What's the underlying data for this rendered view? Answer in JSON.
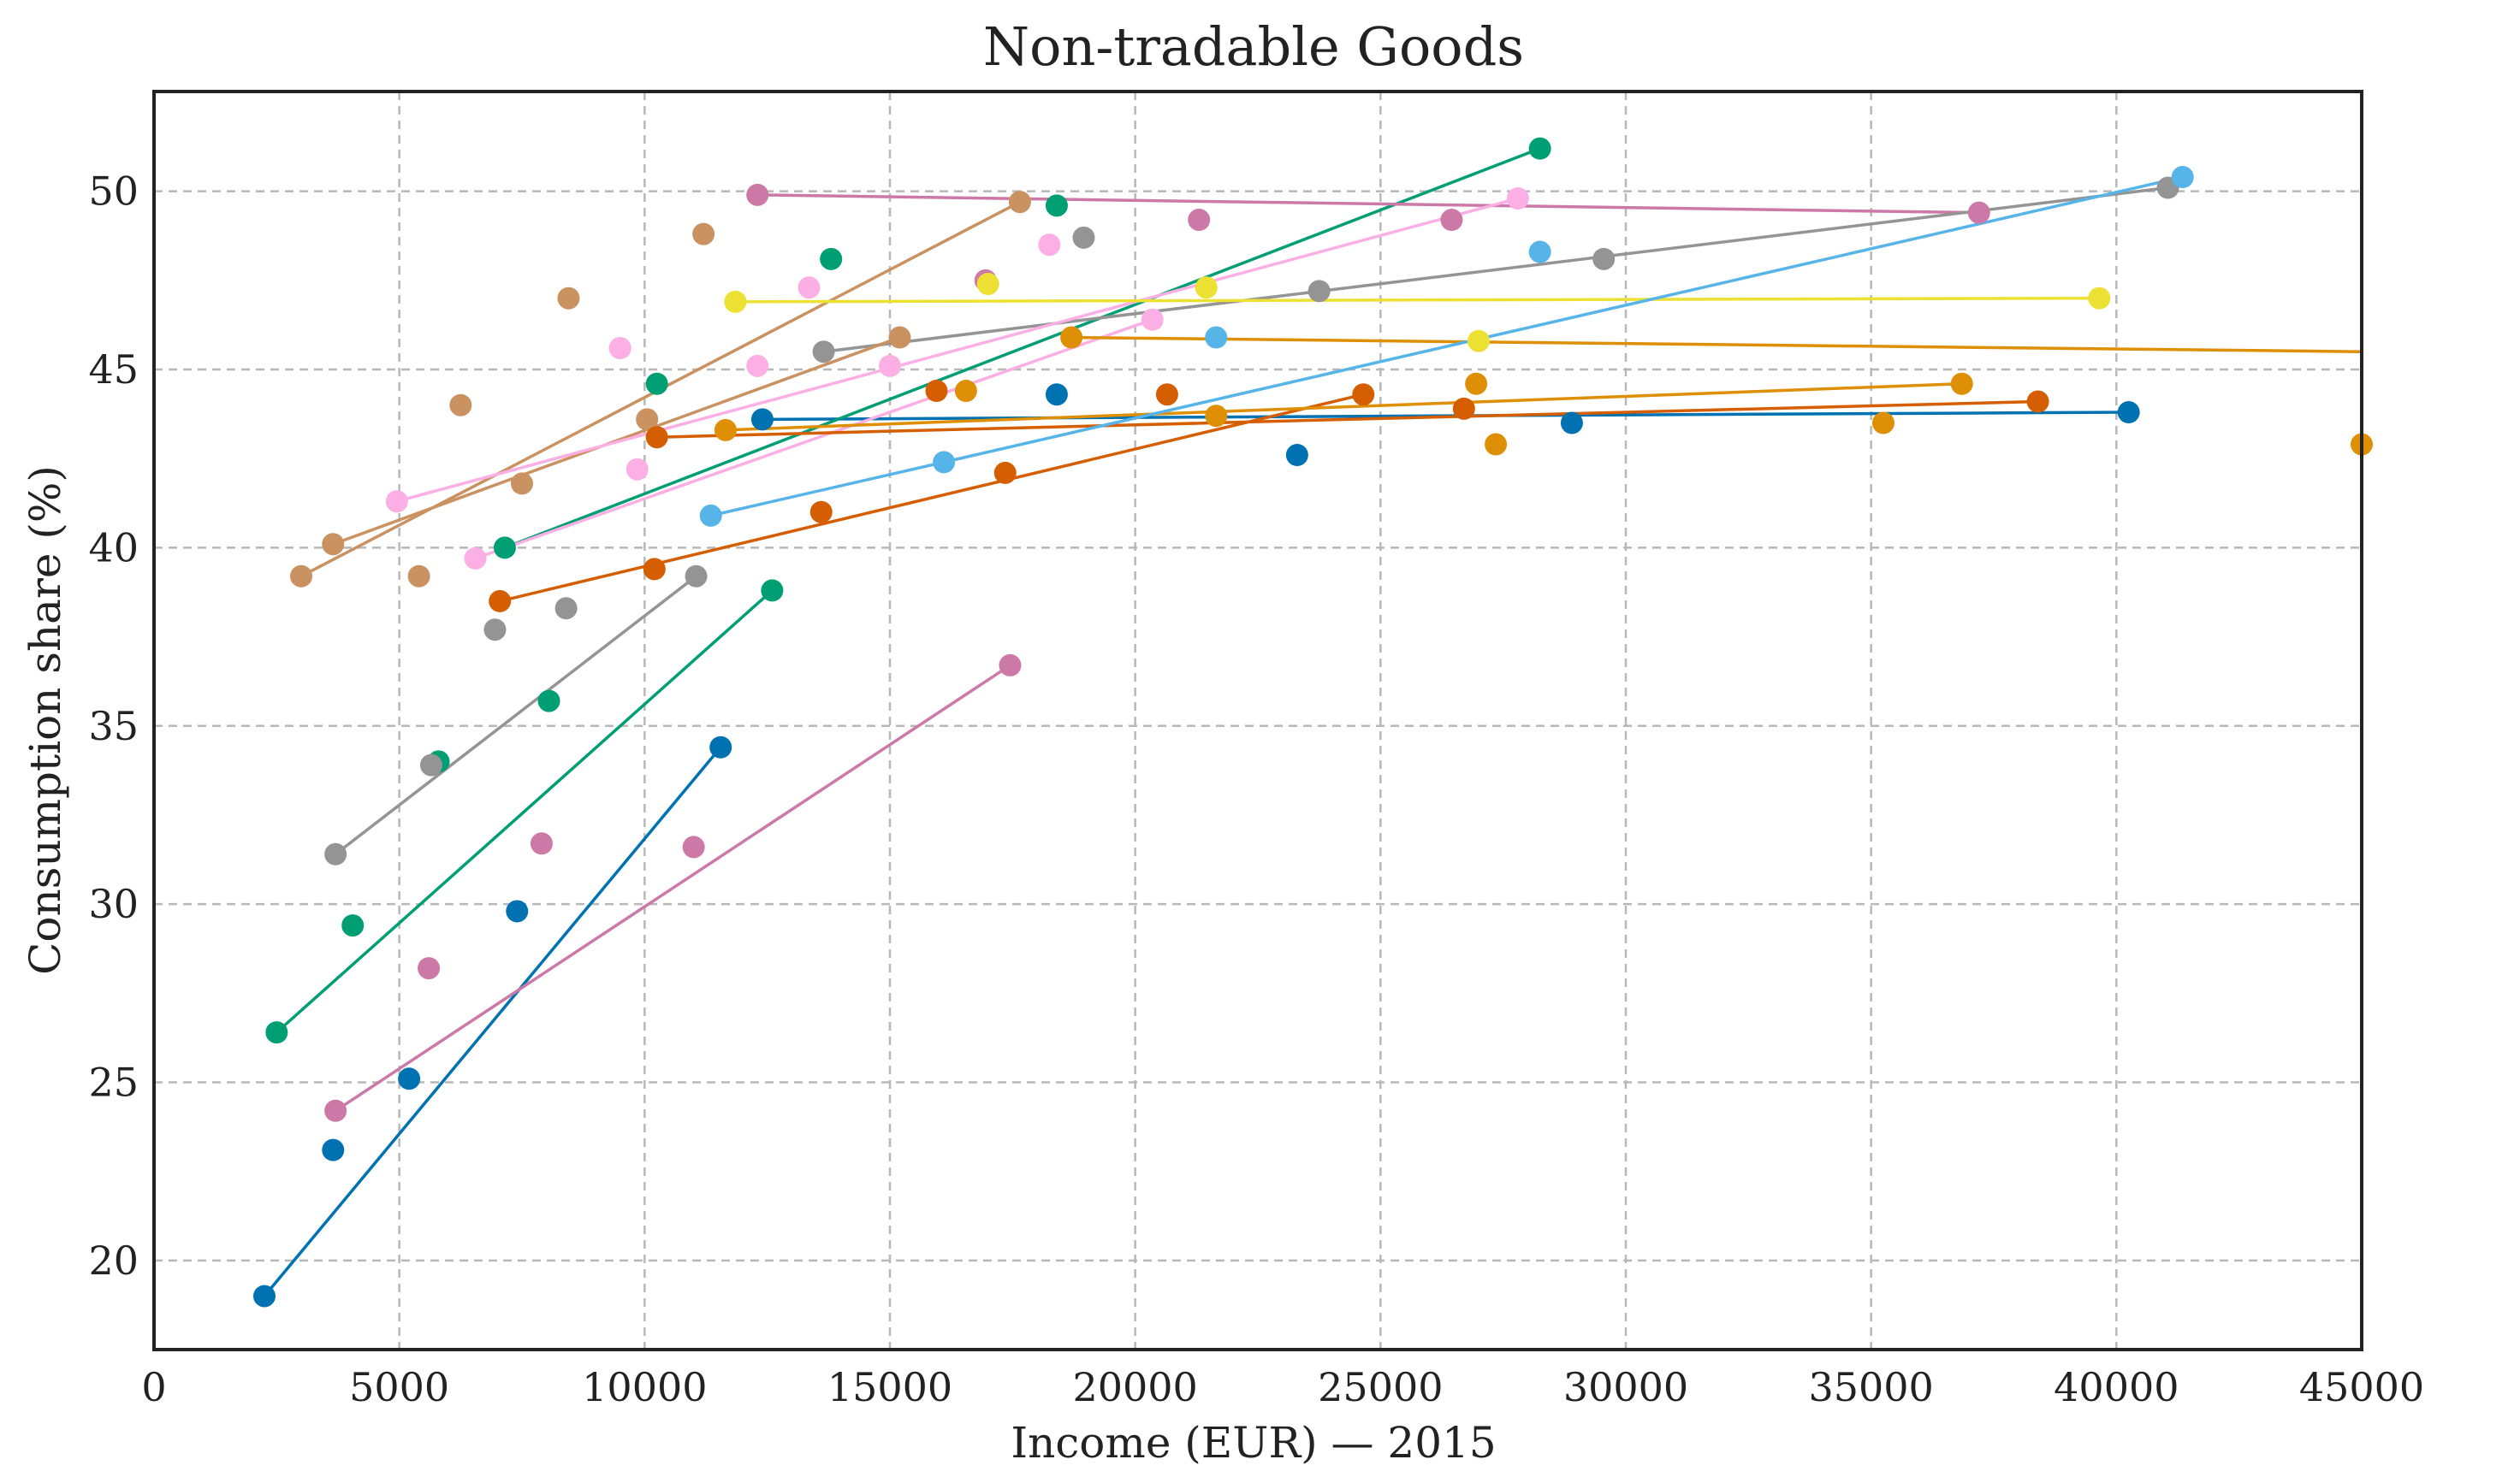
{
  "chart_data": {
    "type": "scatter",
    "title": "Non-tradable Goods",
    "xlabel": "Income (EUR) — 2015",
    "ylabel": "Consumption share (%)",
    "xlim": [
      0,
      45000
    ],
    "ylim": [
      17.5,
      52.8
    ],
    "xticks": [
      0,
      5000,
      10000,
      15000,
      20000,
      25000,
      30000,
      35000,
      40000,
      45000
    ],
    "yticks": [
      20,
      25,
      30,
      35,
      40,
      45,
      50
    ],
    "grid": true,
    "legend": "none",
    "series": [
      {
        "color": "#0072b2",
        "points": [
          [
            2250,
            19.0
          ],
          [
            3650,
            23.1
          ],
          [
            5200,
            25.1
          ],
          [
            7400,
            29.8
          ],
          [
            11550,
            34.4
          ],
          [
            12400,
            43.6
          ],
          [
            18400,
            44.3
          ],
          [
            23300,
            42.6
          ],
          [
            28900,
            43.5
          ],
          [
            40250,
            43.8
          ]
        ],
        "lines": [
          [
            [
              2250,
              19.0
            ],
            [
              11550,
              34.4
            ]
          ],
          [
            [
              12400,
              43.6
            ],
            [
              40250,
              43.8
            ]
          ]
        ]
      },
      {
        "color": "#009e73",
        "points": [
          [
            2500,
            26.4
          ],
          [
            4050,
            29.4
          ],
          [
            5800,
            34.0
          ],
          [
            8050,
            35.7
          ],
          [
            12600,
            38.8
          ],
          [
            7150,
            40.0
          ],
          [
            10250,
            44.6
          ],
          [
            13800,
            48.1
          ],
          [
            18400,
            49.6
          ],
          [
            28250,
            51.2
          ]
        ],
        "lines": [
          [
            [
              2500,
              26.4
            ],
            [
              12600,
              38.8
            ]
          ],
          [
            [
              7150,
              40.0
            ],
            [
              28250,
              51.2
            ]
          ]
        ]
      },
      {
        "color": "#cc79a7",
        "points": [
          [
            3700,
            24.2
          ],
          [
            5600,
            28.2
          ],
          [
            7900,
            31.7
          ],
          [
            11000,
            31.6
          ],
          [
            17450,
            36.7
          ],
          [
            12300,
            49.9
          ],
          [
            16950,
            47.5
          ],
          [
            21300,
            49.2
          ],
          [
            26450,
            49.2
          ],
          [
            37200,
            49.4
          ]
        ],
        "lines": [
          [
            [
              3700,
              24.2
            ],
            [
              17450,
              36.7
            ]
          ],
          [
            [
              12300,
              49.9
            ],
            [
              37200,
              49.4
            ]
          ]
        ]
      },
      {
        "color": "#949494",
        "points": [
          [
            3700,
            31.4
          ],
          [
            5650,
            33.9
          ],
          [
            6950,
            37.7
          ],
          [
            8400,
            38.3
          ],
          [
            11050,
            39.2
          ],
          [
            13650,
            45.5
          ],
          [
            18950,
            48.7
          ],
          [
            23750,
            47.2
          ],
          [
            29550,
            48.1
          ],
          [
            41050,
            50.1
          ]
        ],
        "lines": [
          [
            [
              3700,
              31.4
            ],
            [
              11050,
              39.2
            ]
          ],
          [
            [
              13650,
              45.5
            ],
            [
              41050,
              50.1
            ]
          ]
        ]
      },
      {
        "color": "#ca9161",
        "points": [
          [
            3000,
            39.2
          ],
          [
            3650,
            40.1
          ],
          [
            5400,
            39.2
          ],
          [
            6250,
            44.0
          ],
          [
            7500,
            41.8
          ],
          [
            8450,
            47.0
          ],
          [
            10050,
            43.6
          ],
          [
            11200,
            48.8
          ],
          [
            15200,
            45.9
          ],
          [
            17650,
            49.7
          ]
        ],
        "lines": [
          [
            [
              3000,
              39.2
            ],
            [
              17650,
              49.7
            ]
          ],
          [
            [
              3650,
              40.1
            ],
            [
              15200,
              45.9
            ]
          ]
        ]
      },
      {
        "color": "#fbafe4",
        "points": [
          [
            4950,
            41.3
          ],
          [
            6550,
            39.7
          ],
          [
            9500,
            45.6
          ],
          [
            9850,
            42.2
          ],
          [
            12300,
            45.1
          ],
          [
            13350,
            47.3
          ],
          [
            15000,
            45.1
          ],
          [
            18250,
            48.5
          ],
          [
            20350,
            46.4
          ],
          [
            27800,
            49.8
          ]
        ],
        "lines": [
          [
            [
              4950,
              41.3
            ],
            [
              27800,
              49.8
            ]
          ],
          [
            [
              6550,
              39.7
            ],
            [
              20350,
              46.4
            ]
          ]
        ]
      },
      {
        "color": "#d55e00",
        "points": [
          [
            7050,
            38.5
          ],
          [
            10200,
            39.4
          ],
          [
            10250,
            43.1
          ],
          [
            13600,
            41.0
          ],
          [
            15950,
            44.4
          ],
          [
            17350,
            42.1
          ],
          [
            20650,
            44.3
          ],
          [
            24650,
            44.3
          ],
          [
            26700,
            43.9
          ],
          [
            38400,
            44.1
          ]
        ],
        "lines": [
          [
            [
              7050,
              38.5
            ],
            [
              24650,
              44.3
            ]
          ],
          [
            [
              10250,
              43.1
            ],
            [
              38400,
              44.1
            ]
          ]
        ]
      },
      {
        "color": "#de8f05",
        "points": [
          [
            11650,
            43.3
          ],
          [
            16550,
            44.4
          ],
          [
            18700,
            45.9
          ],
          [
            21650,
            43.7
          ],
          [
            26950,
            44.6
          ],
          [
            27350,
            42.9
          ],
          [
            35250,
            43.5
          ],
          [
            36850,
            44.6
          ],
          [
            45000,
            42.9
          ]
        ],
        "lines": [
          [
            [
              11650,
              43.3
            ],
            [
              36850,
              44.6
            ]
          ],
          [
            [
              18700,
              45.9
            ],
            [
              45000,
              45.5
            ]
          ]
        ]
      },
      {
        "color": "#ece133",
        "points": [
          [
            11850,
            46.9
          ],
          [
            17000,
            47.4
          ],
          [
            21450,
            47.3
          ],
          [
            27000,
            45.8
          ],
          [
            39650,
            47.0
          ]
        ],
        "lines": [
          [
            [
              11850,
              46.9
            ],
            [
              39650,
              47.0
            ]
          ]
        ]
      },
      {
        "color": "#56b4e9",
        "points": [
          [
            11350,
            40.9
          ],
          [
            16100,
            42.4
          ],
          [
            21650,
            45.9
          ],
          [
            28250,
            48.3
          ],
          [
            41350,
            50.4
          ]
        ],
        "lines": [
          [
            [
              11350,
              40.9
            ],
            [
              16100,
              42.4
            ]
          ],
          [
            [
              16100,
              42.4
            ],
            [
              41350,
              50.4
            ]
          ]
        ]
      }
    ]
  }
}
